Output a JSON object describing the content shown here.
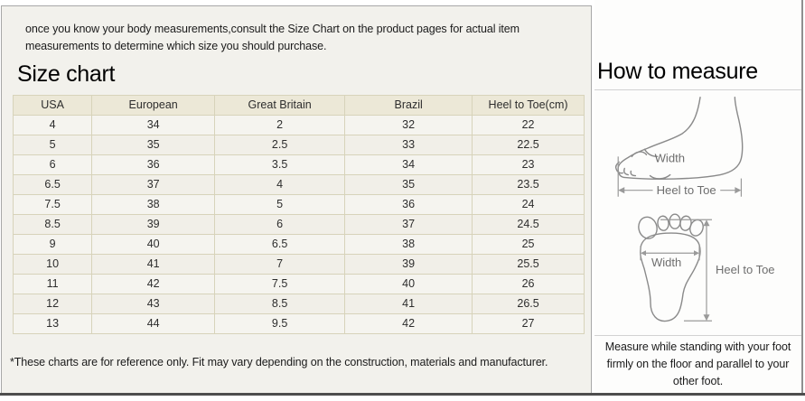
{
  "intro": {
    "text": "once you know your body measurements,consult the Size Chart on the product pages for actual item measurements to determine which size you should purchase."
  },
  "size_chart": {
    "title": "Size chart",
    "columns": [
      "USA",
      "European",
      "Great Britain",
      "Brazil",
      "Heel to Toe(cm)"
    ],
    "rows": [
      [
        "4",
        "34",
        "2",
        "32",
        "22"
      ],
      [
        "5",
        "35",
        "2.5",
        "33",
        "22.5"
      ],
      [
        "6",
        "36",
        "3.5",
        "34",
        "23"
      ],
      [
        "6.5",
        "37",
        "4",
        "35",
        "23.5"
      ],
      [
        "7.5",
        "38",
        "5",
        "36",
        "24"
      ],
      [
        "8.5",
        "39",
        "6",
        "37",
        "24.5"
      ],
      [
        "9",
        "40",
        "6.5",
        "38",
        "25"
      ],
      [
        "10",
        "41",
        "7",
        "39",
        "25.5"
      ],
      [
        "11",
        "42",
        "7.5",
        "40",
        "26"
      ],
      [
        "12",
        "43",
        "8.5",
        "41",
        "26.5"
      ],
      [
        "13",
        "44",
        "9.5",
        "42",
        "27"
      ]
    ],
    "footnote": "*These charts are for reference only. Fit may vary depending on the construction, materials and manufacturer."
  },
  "how_to_measure": {
    "title": "How to measure",
    "side_view": {
      "width_label": "Width",
      "heel_to_toe_label": "Heel to Toe"
    },
    "top_view": {
      "width_label": "Width",
      "heel_to_toe_label": "Heel to Toe"
    },
    "instruction": "Measure while standing with your foot firmly on the floor and parallel to your other foot."
  },
  "colors": {
    "panel_bg": "#f2f1ec",
    "table_header_bg": "#ece8d7",
    "table_row_bg": "#f5f4ef",
    "table_border": "#d7d3ba",
    "panel_border": "#a8a8a8",
    "bottom_bar": "#4d4d4d",
    "diagram_stroke": "#8a8a8a",
    "diagram_label": "#6e6e6e"
  }
}
